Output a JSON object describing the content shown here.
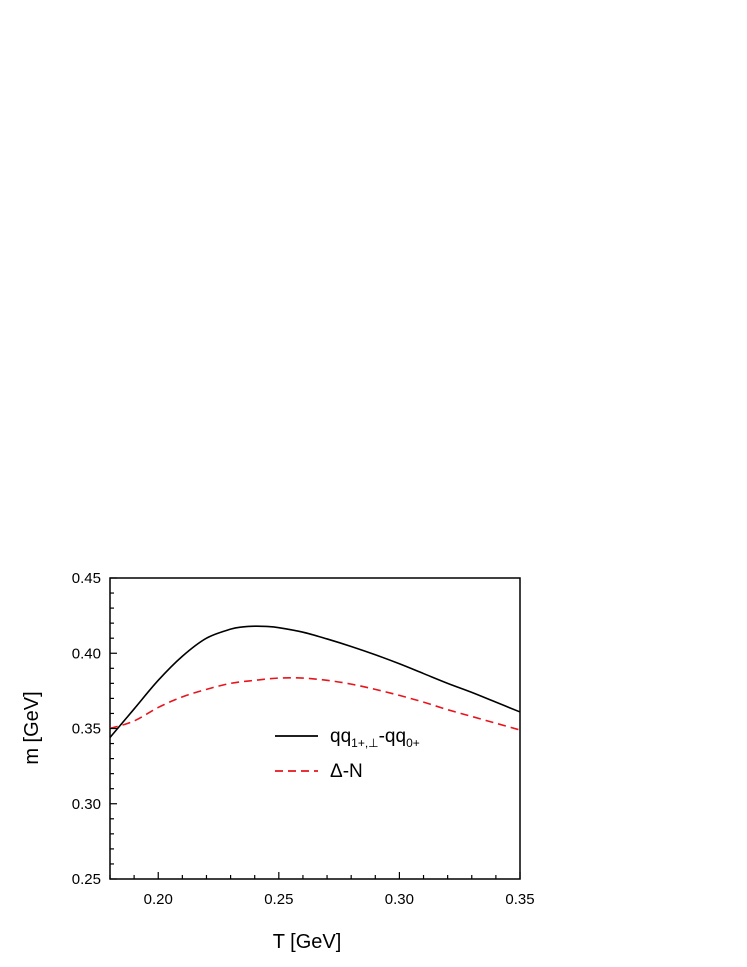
{
  "chart_data": {
    "type": "line",
    "title": "",
    "xlabel": "T [GeV]",
    "ylabel": "m [GeV]",
    "xlim": [
      0.18,
      0.35
    ],
    "ylim": [
      0.25,
      0.45
    ],
    "x_ticks": [
      0.2,
      0.25,
      0.3,
      0.35
    ],
    "x_tick_labels": [
      "0.20",
      "0.25",
      "0.30",
      "0.35"
    ],
    "y_ticks": [
      0.25,
      0.3,
      0.35,
      0.4,
      0.45
    ],
    "y_tick_labels": [
      "0.25",
      "0.30",
      "0.35",
      "0.40",
      "0.45"
    ],
    "grid": false,
    "legend_position": "center-right",
    "series": [
      {
        "name_main": "qq",
        "name_sub1": "1+,⊥",
        "name_mid": "-qq",
        "name_sub2": "0+",
        "color": "#000000",
        "style": "solid",
        "x": [
          0.18,
          0.19,
          0.2,
          0.21,
          0.22,
          0.23,
          0.235,
          0.24,
          0.245,
          0.25,
          0.26,
          0.27,
          0.28,
          0.29,
          0.3,
          0.31,
          0.32,
          0.33,
          0.34,
          0.35
        ],
        "y": [
          0.344,
          0.363,
          0.382,
          0.398,
          0.41,
          0.416,
          0.4175,
          0.418,
          0.4178,
          0.417,
          0.414,
          0.4095,
          0.4045,
          0.399,
          0.393,
          0.3865,
          0.38,
          0.374,
          0.3675,
          0.361
        ]
      },
      {
        "name": "Δ-N",
        "color": "#e8141c",
        "style": "dashed",
        "x": [
          0.18,
          0.19,
          0.2,
          0.21,
          0.22,
          0.23,
          0.24,
          0.25,
          0.26,
          0.27,
          0.28,
          0.29,
          0.3,
          0.31,
          0.32,
          0.33,
          0.34,
          0.35
        ],
        "y": [
          0.35,
          0.355,
          0.364,
          0.371,
          0.376,
          0.38,
          0.382,
          0.3835,
          0.3835,
          0.382,
          0.3795,
          0.376,
          0.372,
          0.3675,
          0.3625,
          0.358,
          0.3535,
          0.349
        ]
      }
    ]
  }
}
